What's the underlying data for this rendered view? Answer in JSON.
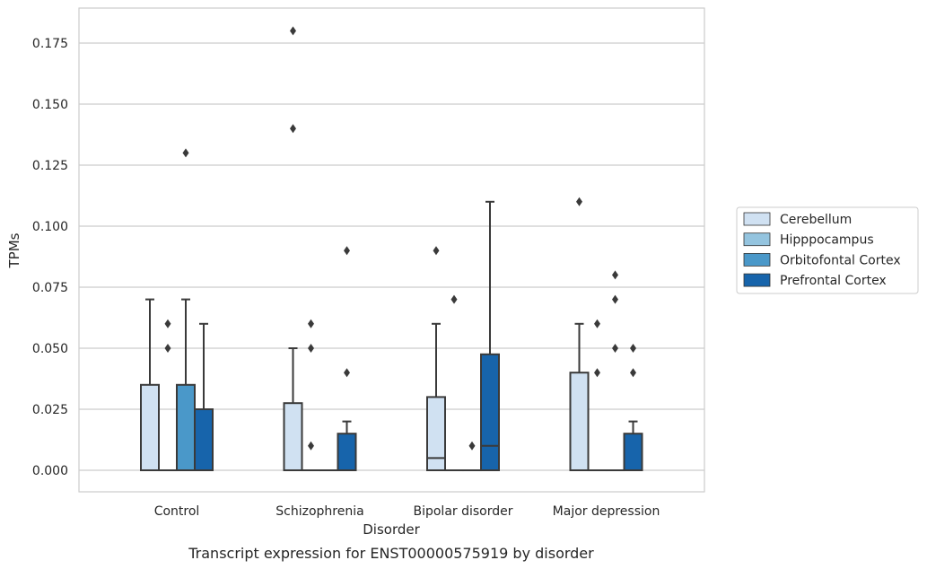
{
  "caption": "Transcript expression for ENST00000575919 by disorder",
  "chart_data": {
    "type": "boxplot",
    "xlabel": "Disorder",
    "ylabel": "TPMs",
    "ylim": [
      -0.009,
      0.189
    ],
    "yticks": [
      "0.000",
      "0.025",
      "0.050",
      "0.075",
      "0.100",
      "0.125",
      "0.150",
      "0.175"
    ],
    "categories": [
      "Control",
      "Schizophrenia",
      "Bipolar disorder",
      "Major depression"
    ],
    "grid": "horizontal",
    "legend_position": "right",
    "series": [
      {
        "name": "Cerebellum",
        "color": "#d0e1f2",
        "boxes": [
          {
            "q1": 0,
            "median": 0,
            "q3": 0.035,
            "whislo": 0,
            "whishi": 0.07,
            "fliers": []
          },
          {
            "q1": 0,
            "median": 0,
            "q3": 0.0275,
            "whislo": 0,
            "whishi": 0.05,
            "fliers": [
              0.18,
              0.14
            ]
          },
          {
            "q1": 0,
            "median": 0.005,
            "q3": 0.03,
            "whislo": 0,
            "whishi": 0.06,
            "fliers": [
              0.09
            ]
          },
          {
            "q1": 0,
            "median": 0,
            "q3": 0.04,
            "whislo": 0,
            "whishi": 0.06,
            "fliers": [
              0.11
            ]
          }
        ]
      },
      {
        "name": "Hipppocampus",
        "color": "#94c4df",
        "boxes": [
          {
            "q1": 0,
            "median": 0,
            "q3": 0,
            "whislo": 0,
            "whishi": 0,
            "fliers": [
              0.06,
              0.05
            ]
          },
          {
            "q1": 0,
            "median": 0,
            "q3": 0,
            "whislo": 0,
            "whishi": 0,
            "fliers": [
              0.06,
              0.05,
              0.01
            ]
          },
          {
            "q1": 0,
            "median": 0,
            "q3": 0,
            "whislo": 0,
            "whishi": 0,
            "fliers": [
              0.07
            ]
          },
          {
            "q1": 0,
            "median": 0,
            "q3": 0,
            "whislo": 0,
            "whishi": 0,
            "fliers": [
              0.06,
              0.04
            ]
          }
        ]
      },
      {
        "name": "Orbitofontal Cortex",
        "color": "#4a98c9",
        "boxes": [
          {
            "q1": 0,
            "median": 0,
            "q3": 0.035,
            "whislo": 0,
            "whishi": 0.07,
            "fliers": [
              0.13
            ]
          },
          {
            "q1": 0,
            "median": 0,
            "q3": 0,
            "whislo": 0,
            "whishi": 0,
            "fliers": []
          },
          {
            "q1": 0,
            "median": 0,
            "q3": 0,
            "whislo": 0,
            "whishi": 0,
            "fliers": [
              0.01
            ]
          },
          {
            "q1": 0,
            "median": 0,
            "q3": 0,
            "whislo": 0,
            "whishi": 0,
            "fliers": [
              0.08,
              0.07,
              0.05
            ]
          }
        ]
      },
      {
        "name": "Prefrontal Cortex",
        "color": "#1764ab",
        "boxes": [
          {
            "q1": 0,
            "median": 0,
            "q3": 0.025,
            "whislo": 0,
            "whishi": 0.06,
            "fliers": []
          },
          {
            "q1": 0,
            "median": 0,
            "q3": 0.015,
            "whislo": 0,
            "whishi": 0.02,
            "fliers": [
              0.09,
              0.04
            ]
          },
          {
            "q1": 0,
            "median": 0.01,
            "q3": 0.0475,
            "whislo": 0,
            "whishi": 0.11,
            "fliers": []
          },
          {
            "q1": 0,
            "median": 0,
            "q3": 0.015,
            "whislo": 0,
            "whishi": 0.02,
            "fliers": [
              0.05,
              0.04
            ]
          }
        ]
      }
    ]
  }
}
